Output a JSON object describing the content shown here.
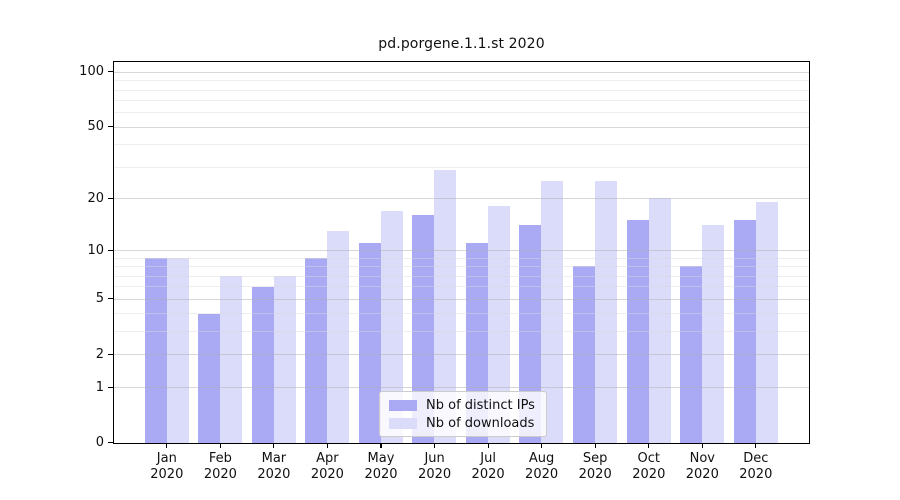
{
  "chart_data": {
    "type": "bar",
    "title": "pd.porgene.1.1.st 2020",
    "year": "2020",
    "months": [
      "Jan",
      "Feb",
      "Mar",
      "Apr",
      "May",
      "Jun",
      "Jul",
      "Aug",
      "Sep",
      "Oct",
      "Nov",
      "Dec"
    ],
    "series": [
      {
        "name": "Nb of distinct IPs",
        "color": "#a9a9f4",
        "values": [
          9,
          4,
          6,
          9,
          11,
          16,
          11,
          14,
          8,
          15,
          8,
          15
        ]
      },
      {
        "name": "Nb of downloads",
        "color": "#dbdbfa",
        "values": [
          9,
          7,
          7,
          13,
          17,
          29,
          18,
          25,
          25,
          20,
          14,
          19
        ]
      }
    ],
    "xlabel": "",
    "ylabel": "",
    "yscale": "log1p",
    "yticks": [
      0,
      1,
      2,
      5,
      10,
      20,
      50,
      100
    ],
    "yticks_minor": [
      3,
      4,
      6,
      7,
      8,
      9,
      30,
      40,
      60,
      70,
      80,
      90
    ],
    "ylim": [
      0,
      113
    ],
    "grid": true,
    "legend_position": "bottom-center"
  }
}
